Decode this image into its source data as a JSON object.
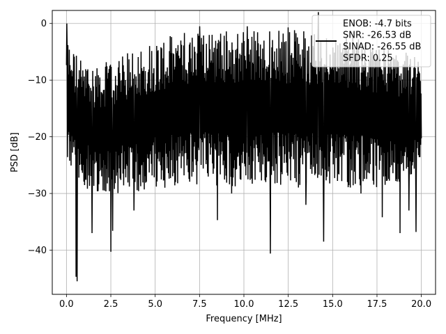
{
  "chart_data": {
    "type": "line",
    "xlabel": "Frequency [MHz]",
    "ylabel": "PSD [dB]",
    "xlim": [
      -0.8,
      20.8
    ],
    "ylim": [
      -47.8,
      2.3
    ],
    "x_ticks": [
      0.0,
      2.5,
      5.0,
      7.5,
      10.0,
      12.5,
      15.0,
      17.5,
      20.0
    ],
    "x_tick_labels": [
      "0.0",
      "2.5",
      "5.0",
      "7.5",
      "10.0",
      "12.5",
      "15.0",
      "17.5",
      "20.0"
    ],
    "y_ticks": [
      0,
      -10,
      -20,
      -30,
      -40
    ],
    "y_tick_labels": [
      "0",
      "−10",
      "−20",
      "−30",
      "−40"
    ],
    "grid": true,
    "legend_position": "top-right",
    "legend_lines": [
      "ENOB: -4.7 bits",
      "SNR: -26.53 dB",
      "SINAD: -26.55 dB",
      "SFDR: 0.25"
    ],
    "series": [
      {
        "color": "#000000",
        "x_range": [
          0,
          20
        ],
        "num_points": 1000,
        "envelope_x": [
          0,
          0.5,
          1,
          2,
          3,
          4,
          5,
          6,
          7,
          8,
          9,
          10,
          11,
          12,
          13,
          14,
          15,
          16,
          17,
          18,
          19,
          20
        ],
        "envelope_upper": [
          -2,
          -5,
          -7,
          -7,
          -6,
          -4,
          -3,
          -2,
          -1,
          -1,
          -1,
          -1,
          -1,
          -1,
          -1,
          -1,
          -2,
          -2,
          -3,
          -4,
          -5,
          -6
        ],
        "envelope_lower": [
          -24,
          -28,
          -29,
          -30,
          -30,
          -30,
          -29,
          -29,
          -29,
          -29,
          -29,
          -29,
          -29,
          -29,
          -29,
          -29,
          -29,
          -29,
          -29,
          -29,
          -29,
          -26
        ],
        "peaks": [
          {
            "x": 0.02,
            "y": 0.0
          },
          {
            "x": 0.6,
            "y": -45.5
          },
          {
            "x": 0.55,
            "y": -44.7
          },
          {
            "x": 1.45,
            "y": -37.0
          },
          {
            "x": 2.5,
            "y": -40.3
          },
          {
            "x": 2.6,
            "y": -36.6
          },
          {
            "x": 11.5,
            "y": -40.6
          },
          {
            "x": 14.5,
            "y": -38.5
          },
          {
            "x": 18.8,
            "y": -37.0
          },
          {
            "x": 19.7,
            "y": -36.8
          },
          {
            "x": 17.8,
            "y": -34.2
          },
          {
            "x": 3.8,
            "y": -33.0
          },
          {
            "x": 8.5,
            "y": -34.7
          },
          {
            "x": 19.3,
            "y": -33.0
          },
          {
            "x": 9.3,
            "y": -30.0
          },
          {
            "x": 13.5,
            "y": -32.0
          },
          {
            "x": 16.6,
            "y": -30.0
          },
          {
            "x": 14.2,
            "y": 2.0
          },
          {
            "x": 12.5,
            "y": -0.7
          },
          {
            "x": 7.5,
            "y": -0.5
          },
          {
            "x": 10.2,
            "y": -0.5
          }
        ]
      }
    ]
  }
}
